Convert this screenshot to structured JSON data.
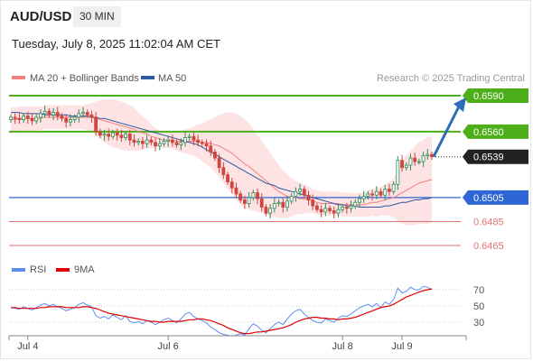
{
  "header": {
    "symbol": "AUD/USD",
    "timeframe": "30 MIN",
    "datetime": "Tuesday, July 8, 2025 11:02:04 AM CET"
  },
  "legend": {
    "ma20_label": "MA 20 + Bollinger Bands",
    "ma50_label": "MA 50",
    "ma20_color": "#f08080",
    "ma50_color": "#2c5aa0",
    "credit": "Research © 2025 Trading Central"
  },
  "rsi_legend": {
    "rsi_label": "RSI",
    "ma_label": "9MA",
    "rsi_color": "#5b8def",
    "ma_color": "#e00000"
  },
  "colors": {
    "green": "#4caf1a",
    "blue": "#2f66d6",
    "red": "#e27373",
    "candle_green": "#2e8b57",
    "candle_red": "#d0453f",
    "band_fill": "#fde3e3",
    "arrow": "#2c6fb7",
    "current_bg": "#222222"
  },
  "chart_data": [
    {
      "type": "candlestick",
      "ylim": [
        0.6455,
        0.6598
      ],
      "x_labels": [
        "Jul 4",
        "Jul 6",
        "Jul 8",
        "Jul 9"
      ],
      "x_label_positions": [
        4,
        37,
        78,
        92
      ],
      "total_periods": 101,
      "levels": [
        {
          "value": 0.659,
          "label": "0.6590",
          "style": "green"
        },
        {
          "value": 0.656,
          "label": "0.6560",
          "style": "green"
        },
        {
          "value": 0.6539,
          "label": "0.6539",
          "style": "current"
        },
        {
          "value": 0.6505,
          "label": "0.6505",
          "style": "blue"
        },
        {
          "value": 0.6485,
          "label": "0.6485",
          "style": "red"
        },
        {
          "value": 0.6465,
          "label": "0.6465",
          "style": "red"
        }
      ],
      "closes": [
        0.6572,
        0.6571,
        0.657,
        0.6573,
        0.6571,
        0.6569,
        0.6572,
        0.6575,
        0.6577,
        0.6574,
        0.6576,
        0.6573,
        0.6571,
        0.6568,
        0.657,
        0.6572,
        0.6575,
        0.6576,
        0.6574,
        0.6572,
        0.656,
        0.6557,
        0.6558,
        0.6556,
        0.6559,
        0.6557,
        0.6555,
        0.6558,
        0.6553,
        0.6551,
        0.6552,
        0.655,
        0.6553,
        0.6551,
        0.6548,
        0.655,
        0.6552,
        0.6553,
        0.6551,
        0.6549,
        0.6551,
        0.6555,
        0.6556,
        0.6553,
        0.6551,
        0.655,
        0.6548,
        0.6543,
        0.6538,
        0.653,
        0.6524,
        0.6518,
        0.6513,
        0.6508,
        0.6503,
        0.65,
        0.6505,
        0.6509,
        0.6504,
        0.6497,
        0.6492,
        0.6496,
        0.65,
        0.6501,
        0.6497,
        0.6502,
        0.6506,
        0.651,
        0.6512,
        0.6507,
        0.6503,
        0.6498,
        0.6495,
        0.6493,
        0.6496,
        0.6494,
        0.6492,
        0.6495,
        0.6497,
        0.6496,
        0.6498,
        0.6501,
        0.6504,
        0.6506,
        0.6508,
        0.6507,
        0.651,
        0.6507,
        0.6512,
        0.651,
        0.6516,
        0.6536,
        0.653,
        0.6532,
        0.6538,
        0.6535,
        0.6535,
        0.654,
        0.6541,
        0.6539
      ],
      "ma20": [
        0.657,
        0.657,
        0.6571,
        0.6571,
        0.6571,
        0.6571,
        0.6571,
        0.6571,
        0.6572,
        0.6572,
        0.6572,
        0.6572,
        0.6572,
        0.6572,
        0.6572,
        0.6572,
        0.6572,
        0.6572,
        0.6572,
        0.6572,
        0.6571,
        0.657,
        0.6569,
        0.6568,
        0.6567,
        0.6566,
        0.6565,
        0.6564,
        0.6563,
        0.6562,
        0.656,
        0.6559,
        0.6558,
        0.6556,
        0.6555,
        0.6554,
        0.6553,
        0.6553,
        0.6553,
        0.6552,
        0.6552,
        0.6552,
        0.6552,
        0.6552,
        0.6552,
        0.6551,
        0.6551,
        0.655,
        0.6549,
        0.6548,
        0.6546,
        0.6544,
        0.6542,
        0.6539,
        0.6536,
        0.6533,
        0.6531,
        0.6528,
        0.6525,
        0.6522,
        0.6519,
        0.6516,
        0.6513,
        0.651,
        0.6508,
        0.6506,
        0.6505,
        0.6505,
        0.6504,
        0.6504,
        0.6503,
        0.6502,
        0.6501,
        0.65,
        0.65,
        0.65,
        0.65,
        0.65,
        0.6499,
        0.6499,
        0.6499,
        0.6499,
        0.6499,
        0.6499,
        0.65,
        0.6501,
        0.6501,
        0.6502,
        0.6503,
        0.6504,
        0.6505,
        0.6507,
        0.6509,
        0.6511,
        0.6513,
        0.6515,
        0.6517,
        0.6518,
        0.6519,
        0.652
      ],
      "ma50": [
        0.6576,
        0.6576,
        0.6576,
        0.6575,
        0.6575,
        0.6575,
        0.6575,
        0.6575,
        0.6574,
        0.6574,
        0.6574,
        0.6574,
        0.6574,
        0.6574,
        0.6573,
        0.6573,
        0.6573,
        0.6573,
        0.6573,
        0.6572,
        0.6572,
        0.6571,
        0.6571,
        0.657,
        0.6569,
        0.6568,
        0.6567,
        0.6566,
        0.6565,
        0.6564,
        0.6563,
        0.6562,
        0.6561,
        0.656,
        0.6559,
        0.6558,
        0.6557,
        0.6556,
        0.6555,
        0.6554,
        0.6553,
        0.6552,
        0.6551,
        0.655,
        0.6549,
        0.6547,
        0.6545,
        0.6543,
        0.6541,
        0.6539,
        0.6537,
        0.6535,
        0.6533,
        0.6531,
        0.6529,
        0.6527,
        0.6525,
        0.6523,
        0.6521,
        0.6519,
        0.6517,
        0.6516,
        0.6515,
        0.6513,
        0.6512,
        0.6511,
        0.651,
        0.6509,
        0.6508,
        0.6507,
        0.6506,
        0.6505,
        0.6504,
        0.6503,
        0.6502,
        0.6501,
        0.65,
        0.6499,
        0.6499,
        0.6498,
        0.6498,
        0.6498,
        0.6497,
        0.6497,
        0.6497,
        0.6497,
        0.6497,
        0.6497,
        0.6498,
        0.6498,
        0.6499,
        0.65,
        0.6501,
        0.6501,
        0.6502,
        0.6503,
        0.6503,
        0.6504,
        0.6504,
        0.6505
      ],
      "band_width": [
        0.001,
        0.001,
        0.001,
        0.001,
        0.001,
        0.001,
        0.001,
        0.001,
        0.001,
        0.001,
        0.001,
        0.001,
        0.001,
        0.001,
        0.001,
        0.001,
        0.001,
        0.001,
        0.0011,
        0.0012,
        0.0014,
        0.0016,
        0.0018,
        0.0019,
        0.002,
        0.002,
        0.002,
        0.002,
        0.0019,
        0.0018,
        0.0016,
        0.0014,
        0.0012,
        0.001,
        0.0008,
        0.0007,
        0.0007,
        0.0007,
        0.0007,
        0.0008,
        0.0009,
        0.001,
        0.0011,
        0.0012,
        0.0014,
        0.0016,
        0.0018,
        0.002,
        0.0023,
        0.0026,
        0.0029,
        0.0032,
        0.0034,
        0.0036,
        0.0037,
        0.0037,
        0.0036,
        0.0034,
        0.0032,
        0.003,
        0.0028,
        0.0026,
        0.0024,
        0.0022,
        0.002,
        0.0018,
        0.0016,
        0.0014,
        0.0013,
        0.0012,
        0.0011,
        0.001,
        0.001,
        0.001,
        0.001,
        0.001,
        0.001,
        0.001,
        0.001,
        0.001,
        0.001,
        0.001,
        0.001,
        0.001,
        0.0011,
        0.0011,
        0.0012,
        0.0012,
        0.0013,
        0.0014,
        0.0016,
        0.0022,
        0.0026,
        0.0029,
        0.0031,
        0.0033,
        0.0034,
        0.0035,
        0.0036,
        0.0036
      ],
      "projection": {
        "from": 0.6539,
        "to": 0.659
      }
    },
    {
      "type": "line",
      "name": "RSI",
      "ylim": [
        20,
        80
      ],
      "tick_labels": [
        "70",
        "50",
        "30"
      ],
      "tick_values": [
        70,
        50,
        30
      ],
      "rsi": [
        48,
        47,
        46,
        49,
        47,
        45,
        48,
        51,
        53,
        50,
        52,
        49,
        47,
        44,
        46,
        48,
        52,
        54,
        51,
        49,
        38,
        35,
        37,
        34,
        39,
        36,
        33,
        38,
        31,
        29,
        31,
        28,
        32,
        30,
        27,
        30,
        33,
        35,
        32,
        29,
        34,
        40,
        42,
        37,
        34,
        32,
        29,
        24,
        21,
        17,
        15,
        14,
        13,
        14,
        16,
        14,
        22,
        28,
        25,
        20,
        17,
        22,
        27,
        30,
        27,
        34,
        40,
        44,
        46,
        40,
        36,
        32,
        30,
        29,
        34,
        32,
        30,
        35,
        38,
        37,
        40,
        44,
        48,
        50,
        52,
        49,
        53,
        48,
        55,
        52,
        58,
        72,
        66,
        68,
        73,
        70,
        70,
        74,
        73,
        70
      ],
      "rsi_ma": [
        48,
        48,
        47,
        47,
        47,
        47,
        47,
        48,
        48,
        49,
        49,
        49,
        49,
        48,
        48,
        48,
        48,
        49,
        49,
        48,
        47,
        45,
        43,
        41,
        40,
        39,
        38,
        37,
        36,
        35,
        34,
        33,
        32,
        31,
        31,
        30,
        30,
        31,
        31,
        31,
        31,
        32,
        33,
        33,
        34,
        34,
        33,
        32,
        30,
        28,
        26,
        23,
        21,
        19,
        17,
        16,
        16,
        17,
        18,
        18,
        19,
        20,
        21,
        22,
        23,
        25,
        27,
        30,
        32,
        34,
        35,
        36,
        36,
        35,
        35,
        34,
        34,
        33,
        34,
        34,
        35,
        36,
        38,
        40,
        42,
        44,
        46,
        48,
        49,
        50,
        52,
        55,
        58,
        61,
        63,
        65,
        67,
        69,
        70,
        71
      ]
    }
  ]
}
